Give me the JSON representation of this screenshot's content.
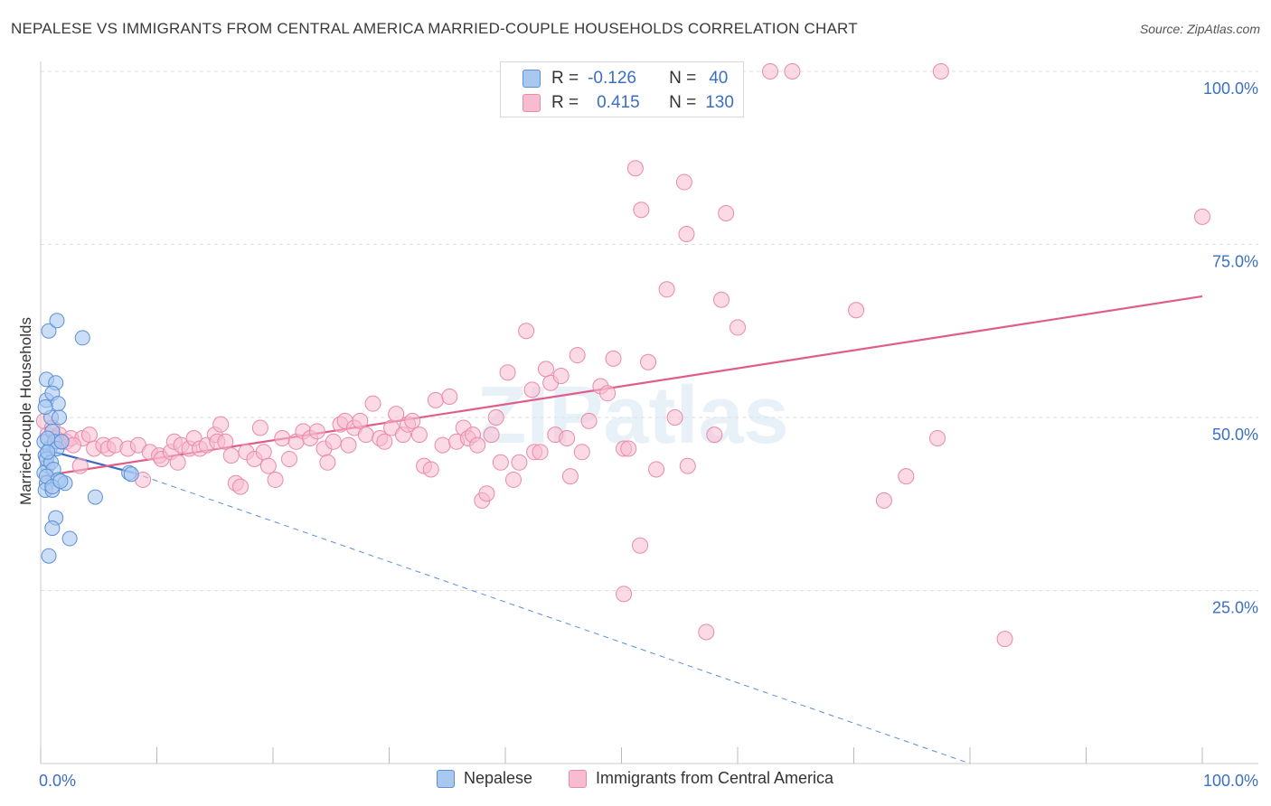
{
  "title": "NEPALESE VS IMMIGRANTS FROM CENTRAL AMERICA MARRIED-COUPLE HOUSEHOLDS CORRELATION CHART",
  "source": "Source: ZipAtlas.com",
  "watermark": "ZIPatlas",
  "colors": {
    "blue_fill": "#a9c8f0",
    "blue_stroke": "#5b8fd8",
    "blue_line": "#3a67c8",
    "pink_fill": "#f7bcd0",
    "pink_stroke": "#e98aa9",
    "pink_line": "#e05d8a",
    "axis_text": "#3b6fc2",
    "grid": "#dddddd"
  },
  "legend_top": {
    "rows": [
      {
        "r_label": "R =",
        "r_value": "-0.126",
        "n_label": "N =",
        "n_value": "40"
      },
      {
        "r_label": "R =",
        "r_value": "0.415",
        "n_label": "N =",
        "n_value": "130"
      }
    ]
  },
  "legend_bottom": [
    {
      "label": "Nepalese"
    },
    {
      "label": "Immigrants from Central America"
    }
  ],
  "chart_data": {
    "type": "scatter",
    "ylabel": "Married-couple Households",
    "x_tick_labels": [
      "0.0%",
      "100.0%"
    ],
    "y_tick_labels": [
      "100.0%",
      "75.0%",
      "50.0%",
      "25.0%"
    ],
    "xlim": [
      0,
      100
    ],
    "ylim": [
      0,
      100
    ],
    "y_gridlines": [
      25,
      50,
      75,
      100
    ],
    "series": [
      {
        "name": "Nepalese",
        "color": "#a9c8f0",
        "R": -0.126,
        "N": 40,
        "trend": {
          "x0": 0,
          "y0": 45.5,
          "x1": 8,
          "y1": 42.0,
          "dashed_to_x": 80,
          "dashed_to_y": 0
        },
        "points": [
          [
            0.3,
            46.5
          ],
          [
            0.5,
            52.5
          ],
          [
            0.4,
            44.5
          ],
          [
            0.6,
            43.0
          ],
          [
            0.3,
            42.0
          ],
          [
            0.8,
            45.5
          ],
          [
            0.5,
            40.5
          ],
          [
            0.4,
            39.5
          ],
          [
            0.7,
            62.5
          ],
          [
            1.4,
            64.0
          ],
          [
            3.6,
            61.5
          ],
          [
            0.5,
            55.5
          ],
          [
            1.3,
            55.0
          ],
          [
            1.0,
            53.5
          ],
          [
            0.9,
            50.0
          ],
          [
            1.5,
            52.0
          ],
          [
            1.6,
            50.0
          ],
          [
            1.0,
            48.0
          ],
          [
            1.2,
            46.5
          ],
          [
            0.6,
            47.0
          ],
          [
            1.4,
            45.5
          ],
          [
            1.8,
            46.5
          ],
          [
            0.5,
            44.0
          ],
          [
            0.9,
            43.5
          ],
          [
            1.1,
            42.5
          ],
          [
            0.5,
            41.5
          ],
          [
            1.5,
            41.0
          ],
          [
            2.1,
            40.5
          ],
          [
            1.0,
            39.5
          ],
          [
            1.0,
            40.0
          ],
          [
            4.7,
            38.5
          ],
          [
            1.3,
            35.5
          ],
          [
            1.0,
            34.0
          ],
          [
            2.5,
            32.5
          ],
          [
            0.7,
            30.0
          ],
          [
            7.6,
            42.0
          ],
          [
            7.8,
            41.8
          ],
          [
            0.4,
            51.5
          ],
          [
            0.6,
            45.0
          ],
          [
            1.7,
            40.8
          ]
        ]
      },
      {
        "name": "Immigrants from Central America",
        "color": "#f7bcd0",
        "R": 0.415,
        "N": 130,
        "trend": {
          "x0": 0,
          "y0": 41.5,
          "x1": 100,
          "y1": 67.5
        },
        "points": [
          [
            0.3,
            49.5
          ],
          [
            0.6,
            47.5
          ],
          [
            1.0,
            48.5
          ],
          [
            1.3,
            47.0
          ],
          [
            1.6,
            47.5
          ],
          [
            1.8,
            46.5
          ],
          [
            2.2,
            46.5
          ],
          [
            2.6,
            47.0
          ],
          [
            3.4,
            43.0
          ],
          [
            3.6,
            47.0
          ],
          [
            4.2,
            47.5
          ],
          [
            4.6,
            45.5
          ],
          [
            5.4,
            46.0
          ],
          [
            5.8,
            45.5
          ],
          [
            6.4,
            46.0
          ],
          [
            7.5,
            45.5
          ],
          [
            8.4,
            46.0
          ],
          [
            8.8,
            41.0
          ],
          [
            9.4,
            45.0
          ],
          [
            10.2,
            44.5
          ],
          [
            10.4,
            44.0
          ],
          [
            11.2,
            45.0
          ],
          [
            11.5,
            46.5
          ],
          [
            12.1,
            46.0
          ],
          [
            12.8,
            45.5
          ],
          [
            13.2,
            47.0
          ],
          [
            13.7,
            45.5
          ],
          [
            14.3,
            46.0
          ],
          [
            15.0,
            47.5
          ],
          [
            15.2,
            46.5
          ],
          [
            15.5,
            49.0
          ],
          [
            15.9,
            46.5
          ],
          [
            16.4,
            44.5
          ],
          [
            16.8,
            40.5
          ],
          [
            17.2,
            40.0
          ],
          [
            17.7,
            45.0
          ],
          [
            18.4,
            44.0
          ],
          [
            18.9,
            48.5
          ],
          [
            19.2,
            45.0
          ],
          [
            19.6,
            43.0
          ],
          [
            20.2,
            41.0
          ],
          [
            20.8,
            47.0
          ],
          [
            21.4,
            44.0
          ],
          [
            22.0,
            46.5
          ],
          [
            22.6,
            48.0
          ],
          [
            23.2,
            47.0
          ],
          [
            23.8,
            48.0
          ],
          [
            24.4,
            45.5
          ],
          [
            24.7,
            43.5
          ],
          [
            25.2,
            46.5
          ],
          [
            25.8,
            49.0
          ],
          [
            26.2,
            49.5
          ],
          [
            26.5,
            46.0
          ],
          [
            27.0,
            48.5
          ],
          [
            27.5,
            49.5
          ],
          [
            28.0,
            47.5
          ],
          [
            28.6,
            52.0
          ],
          [
            29.2,
            47.0
          ],
          [
            29.6,
            46.5
          ],
          [
            30.2,
            48.5
          ],
          [
            30.6,
            50.5
          ],
          [
            31.2,
            47.5
          ],
          [
            31.6,
            49.0
          ],
          [
            32.0,
            49.5
          ],
          [
            32.6,
            47.5
          ],
          [
            33.0,
            43.0
          ],
          [
            33.6,
            42.5
          ],
          [
            34.0,
            52.5
          ],
          [
            34.6,
            46.0
          ],
          [
            35.2,
            53.0
          ],
          [
            35.8,
            46.5
          ],
          [
            36.4,
            48.5
          ],
          [
            36.8,
            47.0
          ],
          [
            37.2,
            47.5
          ],
          [
            37.6,
            46.0
          ],
          [
            38.0,
            38.0
          ],
          [
            38.4,
            39.0
          ],
          [
            38.8,
            47.5
          ],
          [
            39.2,
            50.0
          ],
          [
            39.6,
            43.5
          ],
          [
            40.2,
            56.5
          ],
          [
            40.7,
            41.0
          ],
          [
            41.2,
            43.5
          ],
          [
            41.8,
            62.5
          ],
          [
            42.3,
            54.0
          ],
          [
            42.5,
            45.0
          ],
          [
            43.0,
            45.0
          ],
          [
            43.5,
            57.0
          ],
          [
            43.9,
            55.0
          ],
          [
            44.3,
            47.5
          ],
          [
            44.8,
            56.0
          ],
          [
            45.3,
            47.0
          ],
          [
            45.6,
            41.5
          ],
          [
            46.2,
            59.0
          ],
          [
            46.6,
            45.0
          ],
          [
            47.2,
            49.5
          ],
          [
            48.2,
            54.5
          ],
          [
            48.8,
            53.5
          ],
          [
            49.3,
            58.5
          ],
          [
            50.2,
            45.5
          ],
          [
            50.6,
            45.5
          ],
          [
            51.2,
            86.0
          ],
          [
            51.6,
            31.5
          ],
          [
            51.7,
            80.0
          ],
          [
            52.3,
            58.0
          ],
          [
            53.0,
            42.5
          ],
          [
            53.9,
            68.5
          ],
          [
            54.6,
            50.0
          ],
          [
            55.4,
            84.0
          ],
          [
            55.6,
            76.5
          ],
          [
            55.7,
            43.0
          ],
          [
            58.0,
            47.5
          ],
          [
            58.6,
            67.0
          ],
          [
            59.0,
            79.5
          ],
          [
            59.3,
            100.0
          ],
          [
            60.0,
            63.0
          ],
          [
            62.8,
            100.0
          ],
          [
            64.7,
            100.0
          ],
          [
            70.2,
            65.5
          ],
          [
            72.6,
            38.0
          ],
          [
            74.5,
            41.5
          ],
          [
            77.2,
            47.0
          ],
          [
            77.5,
            100.0
          ],
          [
            83.0,
            18.0
          ],
          [
            57.3,
            19.0
          ],
          [
            50.2,
            24.5
          ],
          [
            100.0,
            79.0
          ],
          [
            45.3,
            100.0
          ],
          [
            2.8,
            46.0
          ],
          [
            11.8,
            43.5
          ]
        ]
      }
    ]
  }
}
